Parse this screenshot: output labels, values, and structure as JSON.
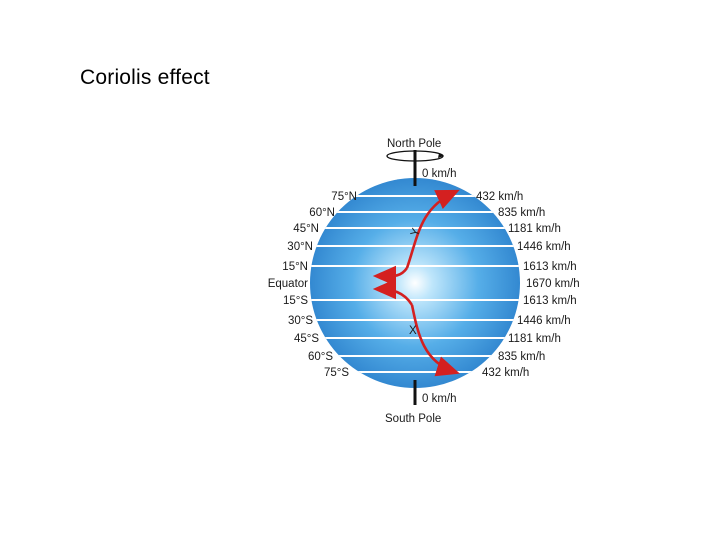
{
  "title": "Coriolis effect",
  "diagram": {
    "north_pole": "North Pole",
    "south_pole": "South Pole",
    "top_speed": "0 km/h",
    "bottom_speed": "0 km/h",
    "latitudes_left": [
      "75°N",
      "60°N",
      "45°N",
      "30°N",
      "15°N",
      "Equator",
      "15°S",
      "30°S",
      "45°S",
      "60°S",
      "75°S"
    ],
    "speeds_right": [
      "432 km/h",
      "835 km/h",
      "1181 km/h",
      "1446 km/h",
      "1613 km/h",
      "1670 km/h",
      "1613 km/h",
      "1446 km/h",
      "1181 km/h",
      "835 km/h",
      "432 km/h"
    ],
    "markers": [
      "Y",
      "X"
    ],
    "colors": {
      "globe": "#2f8fd6",
      "arrow": "#d42020",
      "band": "#ffffff"
    }
  }
}
